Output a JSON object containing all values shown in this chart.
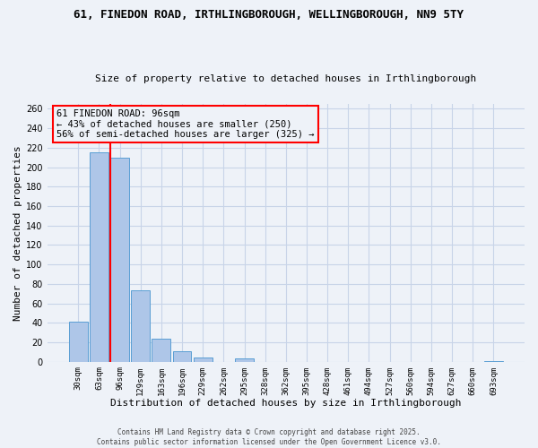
{
  "title": "61, FINEDON ROAD, IRTHLINGBOROUGH, WELLINGBOROUGH, NN9 5TY",
  "subtitle": "Size of property relative to detached houses in Irthlingborough",
  "xlabel": "Distribution of detached houses by size in Irthlingborough",
  "ylabel": "Number of detached properties",
  "categories": [
    "30sqm",
    "63sqm",
    "96sqm",
    "129sqm",
    "163sqm",
    "196sqm",
    "229sqm",
    "262sqm",
    "295sqm",
    "328sqm",
    "362sqm",
    "395sqm",
    "428sqm",
    "461sqm",
    "494sqm",
    "527sqm",
    "560sqm",
    "594sqm",
    "627sqm",
    "660sqm",
    "693sqm"
  ],
  "values": [
    41,
    215,
    210,
    73,
    24,
    11,
    4,
    0,
    3,
    0,
    0,
    0,
    0,
    0,
    0,
    0,
    0,
    0,
    0,
    0,
    1
  ],
  "bar_color": "#aec6e8",
  "bar_edge_color": "#5a9fd4",
  "red_line_index": 2,
  "ylim": [
    0,
    265
  ],
  "yticks": [
    0,
    20,
    40,
    60,
    80,
    100,
    120,
    140,
    160,
    180,
    200,
    220,
    240,
    260
  ],
  "annotation_title": "61 FINEDON ROAD: 96sqm",
  "annotation_line1": "← 43% of detached houses are smaller (250)",
  "annotation_line2": "56% of semi-detached houses are larger (325) →",
  "footer1": "Contains HM Land Registry data © Crown copyright and database right 2025.",
  "footer2": "Contains public sector information licensed under the Open Government Licence v3.0.",
  "bg_color": "#eef2f8",
  "grid_color": "#c8d4e8"
}
